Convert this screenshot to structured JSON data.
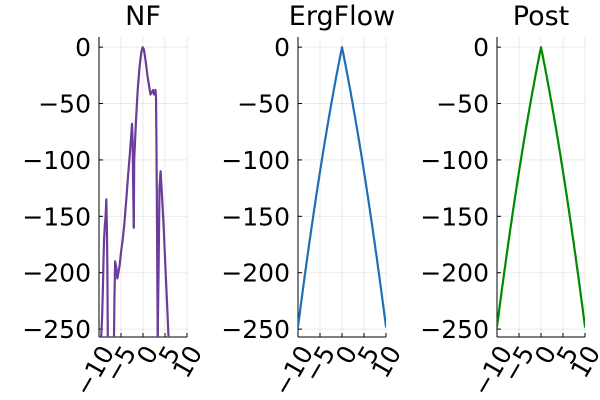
{
  "chart_data": [
    {
      "type": "line",
      "title": "NF",
      "color": "#6a3d9a",
      "xlim": [
        -10,
        10
      ],
      "ylim": [
        -257,
        9
      ],
      "x_ticks": [
        -10,
        -5,
        0,
        5,
        10
      ],
      "x_tick_labels": [
        "−10",
        "−5",
        "0",
        "5",
        "10"
      ],
      "y_ticks": [
        0,
        -50,
        -100,
        -150,
        -200,
        -250
      ],
      "y_tick_labels": [
        "0",
        "−50",
        "−100",
        "−150",
        "−200",
        "−250"
      ],
      "grid": true,
      "segments": [
        [
          [
            -9.5,
            -257
          ],
          [
            -9.3,
            -240
          ],
          [
            -9.1,
            -210
          ],
          [
            -8.95,
            -185
          ],
          [
            -8.85,
            -170
          ],
          [
            -8.7,
            -160
          ],
          [
            -8.5,
            -150
          ],
          [
            -8.35,
            -135
          ],
          [
            -8.2,
            -160
          ],
          [
            -8.1,
            -200
          ],
          [
            -8.0,
            -257
          ]
        ],
        [
          [
            -6.6,
            -257
          ],
          [
            -6.5,
            -225
          ],
          [
            -6.35,
            -190
          ],
          [
            -6.1,
            -195
          ],
          [
            -5.85,
            -205
          ],
          [
            -5.6,
            -200
          ],
          [
            -5.3,
            -193
          ],
          [
            -5.0,
            -182
          ],
          [
            -4.6,
            -170
          ],
          [
            -4.2,
            -155
          ],
          [
            -3.8,
            -135
          ],
          [
            -3.4,
            -115
          ],
          [
            -3.0,
            -95
          ],
          [
            -2.7,
            -80
          ],
          [
            -2.5,
            -68
          ],
          [
            -2.35,
            -85
          ],
          [
            -2.25,
            -120
          ],
          [
            -2.1,
            -160
          ]
        ],
        [
          [
            -2.1,
            -160
          ],
          [
            -2.0,
            -100
          ],
          [
            -1.6,
            -65
          ],
          [
            -1.2,
            -38
          ],
          [
            -0.8,
            -18
          ],
          [
            -0.4,
            -5
          ],
          [
            -0.1,
            0
          ],
          [
            0.2,
            -2
          ],
          [
            0.6,
            -12
          ],
          [
            1.0,
            -25
          ],
          [
            1.4,
            -35
          ],
          [
            1.7,
            -42
          ],
          [
            2.0,
            -40
          ],
          [
            2.3,
            -38
          ],
          [
            2.5,
            -42
          ],
          [
            2.7,
            -40
          ],
          [
            2.85,
            -38
          ],
          [
            2.95,
            -44
          ],
          [
            3.05,
            -80
          ],
          [
            3.15,
            -140
          ],
          [
            3.25,
            -200
          ],
          [
            3.35,
            -257
          ]
        ],
        [
          [
            3.35,
            -257
          ],
          [
            3.55,
            -195
          ],
          [
            3.75,
            -125
          ],
          [
            4.0,
            -110
          ],
          [
            4.3,
            -130
          ],
          [
            4.7,
            -160
          ],
          [
            5.1,
            -195
          ],
          [
            5.5,
            -230
          ],
          [
            5.8,
            -257
          ]
        ]
      ]
    },
    {
      "type": "line",
      "title": "ErgFlow",
      "color": "#1f6fb5",
      "xlim": [
        -10,
        10
      ],
      "ylim": [
        -257,
        9
      ],
      "x_ticks": [
        -10,
        -5,
        0,
        5,
        10
      ],
      "x_tick_labels": [
        "−10",
        "−5",
        "0",
        "5",
        "10"
      ],
      "y_ticks": [
        0,
        -50,
        -100,
        -150,
        -200,
        -250
      ],
      "y_tick_labels": [
        "0",
        "−50",
        "−100",
        "−150",
        "−200",
        "−250"
      ],
      "grid": true,
      "curve": {
        "shape": "peak",
        "x_min": -10,
        "x_max": 10,
        "peak_x": 0,
        "peak_y": 0,
        "end_y": -248
      }
    },
    {
      "type": "line",
      "title": "Post",
      "color": "#008a00",
      "xlim": [
        -10,
        10
      ],
      "ylim": [
        -257,
        9
      ],
      "x_ticks": [
        -10,
        -5,
        0,
        5,
        10
      ],
      "x_tick_labels": [
        "−10",
        "−5",
        "0",
        "5",
        "10"
      ],
      "y_ticks": [
        0,
        -50,
        -100,
        -150,
        -200,
        -250
      ],
      "y_tick_labels": [
        "0",
        "−50",
        "−100",
        "−150",
        "−200",
        "−250"
      ],
      "grid": true,
      "curve": {
        "shape": "peak",
        "x_min": -10,
        "x_max": 10,
        "peak_x": 0,
        "peak_y": 0,
        "end_y": -248
      }
    }
  ]
}
